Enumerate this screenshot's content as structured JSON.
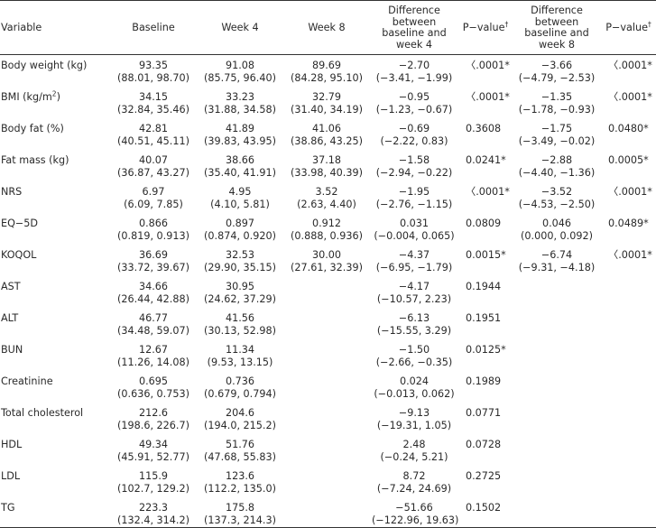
{
  "header": {
    "variable": "Variable",
    "baseline": "Baseline",
    "week4": "Week 4",
    "week8": "Week 8",
    "diff4": [
      "Difference",
      "between",
      "baseline and",
      "week 4"
    ],
    "pvalue": "P−value",
    "pvalue_mark": "†",
    "diff8": [
      "Difference",
      "between",
      "baseline and",
      "week 8"
    ]
  },
  "rows": [
    {
      "variable": "Body weight (kg)",
      "baseline": [
        "93.35",
        "(88.01, 98.70)"
      ],
      "week4": [
        "91.08",
        "(85.75, 96.40)"
      ],
      "week8": [
        "89.69",
        "(84.28, 95.10)"
      ],
      "diff4": [
        "−2.70",
        "(−3.41, −1.99)"
      ],
      "p4": "〈.0001*",
      "diff8": [
        "−3.66",
        "(−4.79, −2.53)"
      ],
      "p8": "〈.0001*"
    },
    {
      "variable": "BMI (kg/m",
      "variable_sup": "2",
      "variable_tail": ")",
      "baseline": [
        "34.15",
        "(32.84, 35.46)"
      ],
      "week4": [
        "33.23",
        "(31.88, 34.58)"
      ],
      "week8": [
        "32.79",
        "(31.40, 34.19)"
      ],
      "diff4": [
        "−0.95",
        "(−1.23, −0.67)"
      ],
      "p4": "〈.0001*",
      "diff8": [
        "−1.35",
        "(−1.78, −0.93)"
      ],
      "p8": "〈.0001*"
    },
    {
      "variable": "Body fat (%)",
      "baseline": [
        "42.81",
        "(40.51, 45.11)"
      ],
      "week4": [
        "41.89",
        "(39.83, 43.95)"
      ],
      "week8": [
        "41.06",
        "(38.86, 43.25)"
      ],
      "diff4": [
        "−0.69",
        "(−2.22, 0.83)"
      ],
      "p4": "0.3608",
      "diff8": [
        "−1.75",
        "(−3.49, −0.02)"
      ],
      "p8": "0.0480*"
    },
    {
      "variable": "Fat mass (kg)",
      "baseline": [
        "40.07",
        "(36.87, 43.27)"
      ],
      "week4": [
        "38.66",
        "(35.40, 41.91)"
      ],
      "week8": [
        "37.18",
        "(33.98, 40.39)"
      ],
      "diff4": [
        "−1.58",
        "(−2.94, −0.22)"
      ],
      "p4": "0.0241*",
      "diff8": [
        "−2.88",
        "(−4.40, −1.36)"
      ],
      "p8": "0.0005*"
    },
    {
      "variable": "NRS",
      "baseline": [
        "6.97",
        "(6.09, 7.85)"
      ],
      "week4": [
        "4.95",
        "(4.10, 5.81)"
      ],
      "week8": [
        "3.52",
        "(2.63, 4.40)"
      ],
      "diff4": [
        "−1.95",
        "(−2.76, −1.15)"
      ],
      "p4": "〈.0001*",
      "diff8": [
        "−3.52",
        "(−4.53, −2.50)"
      ],
      "p8": "〈.0001*"
    },
    {
      "variable": "EQ−5D",
      "baseline": [
        "0.866",
        "(0.819, 0.913)"
      ],
      "week4": [
        "0.897",
        "(0.874, 0.920)"
      ],
      "week8": [
        "0.912",
        "(0.888, 0.936)"
      ],
      "diff4": [
        "0.031",
        "(−0.004, 0.065)"
      ],
      "p4": "0.0809",
      "diff8": [
        "0.046",
        "(0.000, 0.092)"
      ],
      "p8": "0.0489*"
    },
    {
      "variable": "KOQOL",
      "baseline": [
        "36.69",
        "(33.72, 39.67)"
      ],
      "week4": [
        "32.53",
        "(29.90, 35.15)"
      ],
      "week8": [
        "30.00",
        "(27.61, 32.39)"
      ],
      "diff4": [
        "−4.37",
        "(−6.95, −1.79)"
      ],
      "p4": "0.0015*",
      "diff8": [
        "−6.74",
        "(−9.31, −4.18)"
      ],
      "p8": "〈.0001*"
    },
    {
      "variable": "AST",
      "baseline": [
        "34.66",
        "(26.44, 42.88)"
      ],
      "week4": [
        "30.95",
        "(24.62, 37.29)"
      ],
      "week8": [
        "",
        ""
      ],
      "diff4": [
        "−4.17",
        "(−10.57, 2.23)"
      ],
      "p4": "0.1944",
      "diff8": [
        "",
        ""
      ],
      "p8": ""
    },
    {
      "variable": "ALT",
      "baseline": [
        "46.77",
        "(34.48, 59.07)"
      ],
      "week4": [
        "41.56",
        "(30.13, 52.98)"
      ],
      "week8": [
        "",
        ""
      ],
      "diff4": [
        "−6.13",
        "(−15.55, 3.29)"
      ],
      "p4": "0.1951",
      "diff8": [
        "",
        ""
      ],
      "p8": ""
    },
    {
      "variable": "BUN",
      "baseline": [
        "12.67",
        "(11.26, 14.08)"
      ],
      "week4": [
        "11.34",
        "(9.53, 13.15)"
      ],
      "week8": [
        "",
        ""
      ],
      "diff4": [
        "−1.50",
        "(−2.66, −0.35)"
      ],
      "p4": "0.0125*",
      "diff8": [
        "",
        ""
      ],
      "p8": ""
    },
    {
      "variable": "Creatinine",
      "baseline": [
        "0.695",
        "(0.636, 0.753)"
      ],
      "week4": [
        "0.736",
        "(0.679, 0.794)"
      ],
      "week8": [
        "",
        ""
      ],
      "diff4": [
        "0.024",
        "(−0.013, 0.062)"
      ],
      "p4": "0.1989",
      "diff8": [
        "",
        ""
      ],
      "p8": ""
    },
    {
      "variable": "Total cholesterol",
      "baseline": [
        "212.6",
        "(198.6, 226.7)"
      ],
      "week4": [
        "204.6",
        "(194.0, 215.2)"
      ],
      "week8": [
        "",
        ""
      ],
      "diff4": [
        "−9.13",
        "(−19.31, 1.05)"
      ],
      "p4": "0.0771",
      "diff8": [
        "",
        ""
      ],
      "p8": ""
    },
    {
      "variable": "HDL",
      "baseline": [
        "49.34",
        "(45.91, 52.77)"
      ],
      "week4": [
        "51.76",
        "(47.68, 55.83)"
      ],
      "week8": [
        "",
        ""
      ],
      "diff4": [
        "2.48",
        "(−0.24, 5.21)"
      ],
      "p4": "0.0728",
      "diff8": [
        "",
        ""
      ],
      "p8": ""
    },
    {
      "variable": "LDL",
      "baseline": [
        "115.9",
        "(102.7, 129.2)"
      ],
      "week4": [
        "123.6",
        "(112.2, 135.0)"
      ],
      "week8": [
        "",
        ""
      ],
      "diff4": [
        "8.72",
        "(−7.24, 24.69)"
      ],
      "p4": "0.2725",
      "diff8": [
        "",
        ""
      ],
      "p8": ""
    },
    {
      "variable": "TG",
      "baseline": [
        "223.3",
        "(132.4, 314.2)"
      ],
      "week4": [
        "175.8",
        "(137.3, 214.3)"
      ],
      "week8": [
        "",
        ""
      ],
      "diff4": [
        "−51.66",
        "(−122.96, 19.63)"
      ],
      "p4": "0.1502",
      "diff8": [
        "",
        ""
      ],
      "p8": ""
    }
  ]
}
